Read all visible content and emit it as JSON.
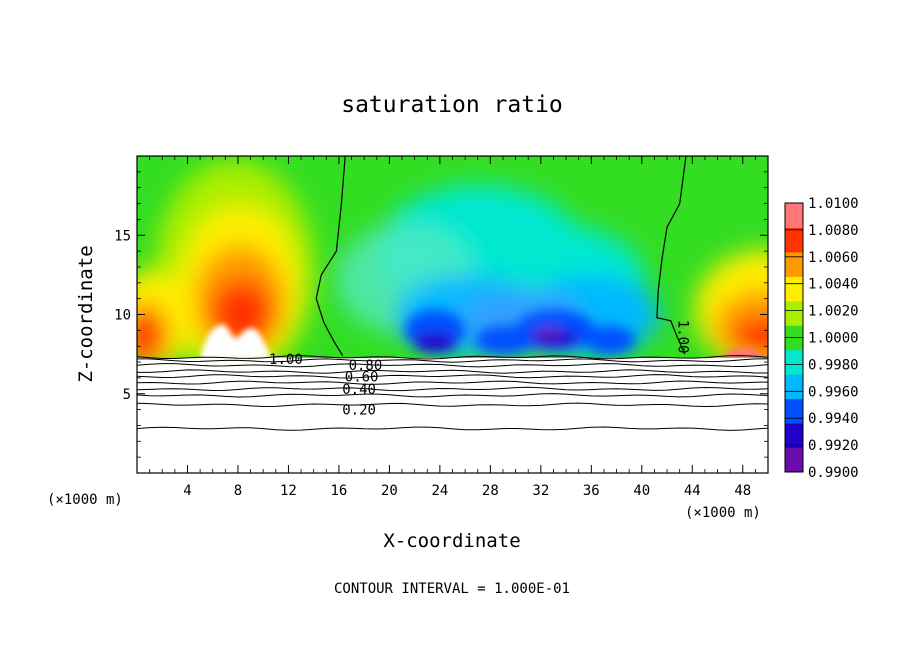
{
  "chart_data": {
    "type": "heatmap",
    "title": "saturation ratio",
    "xlabel": "X-coordinate",
    "ylabel": "Z-coordinate",
    "x_unit_left": "(×1000 m)",
    "x_unit_right": "(×1000 m)",
    "xlim": [
      0,
      50
    ],
    "ylim": [
      0,
      20
    ],
    "x_ticks": [
      4,
      8,
      12,
      16,
      20,
      24,
      28,
      32,
      36,
      40,
      44,
      48
    ],
    "x_tick_labels": [
      "4",
      "8",
      "12",
      "16",
      "20",
      "24",
      "28",
      "32",
      "36",
      "40",
      "44",
      "48"
    ],
    "y_ticks": [
      5,
      10,
      15
    ],
    "y_tick_labels": [
      "5",
      "10",
      "15"
    ],
    "colorbar": {
      "min": 0.99,
      "max": 1.01,
      "tick_values": [
        1.01,
        1.008,
        1.006,
        1.004,
        1.002,
        1.0,
        0.998,
        0.996,
        0.994,
        0.992,
        0.99
      ],
      "tick_labels": [
        "1.0100",
        "1.0080",
        "1.0060",
        "1.0040",
        "1.0020",
        "1.0000",
        "0.9980",
        "0.9960",
        "0.9940",
        "0.9920",
        "0.9900"
      ],
      "colors": [
        "#6a0dad",
        "#2200cc",
        "#0050ff",
        "#00b8ff",
        "#00e8d0",
        "#33dd22",
        "#aaee00",
        "#ffee00",
        "#ff9900",
        "#ff3300",
        "#ff7777"
      ]
    },
    "contour_labels": [
      {
        "text": "1.00",
        "x": 11.8,
        "z": 7.2
      },
      {
        "text": "0.80",
        "x": 18.1,
        "z": 6.8
      },
      {
        "text": "0.60",
        "x": 17.8,
        "z": 6.1
      },
      {
        "text": "0.40",
        "x": 17.6,
        "z": 5.3
      },
      {
        "text": "0.20",
        "x": 17.6,
        "z": 4.0
      },
      {
        "text": "1.00",
        "x": 43.3,
        "z": 8.6
      }
    ],
    "contour_interval_text": "CONTOUR INTERVAL = 1.000E-01"
  }
}
